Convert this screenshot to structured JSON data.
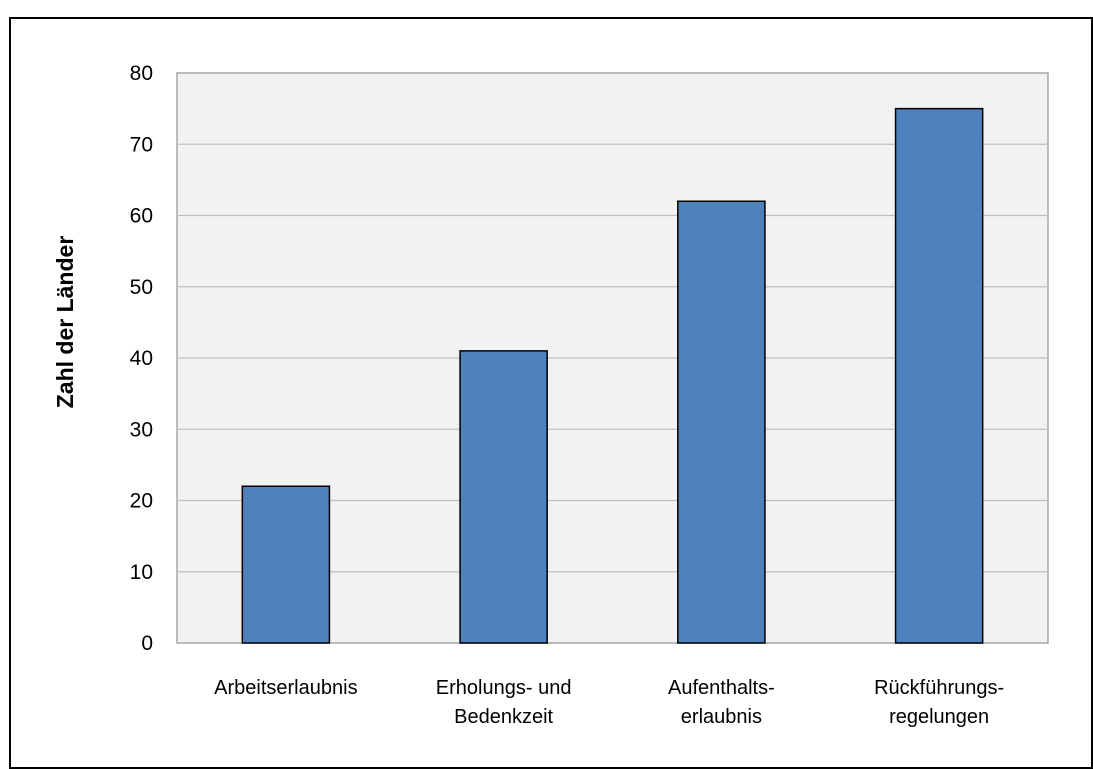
{
  "chart_data": {
    "type": "bar",
    "title": "",
    "xlabel": "",
    "ylabel": "Zahl der Länder",
    "ylim": [
      0,
      80
    ],
    "yticks": [
      0,
      10,
      20,
      30,
      40,
      50,
      60,
      70,
      80
    ],
    "grid": true,
    "legend": "none",
    "categories": [
      [
        "Arbeitserlaubnis"
      ],
      [
        "Erholungs- und",
        "Bedenkzeit"
      ],
      [
        "Aufenthalts-",
        "erlaubnis"
      ],
      [
        "Rückführungs-",
        "regelungen"
      ]
    ],
    "values": [
      22,
      41,
      62,
      75
    ],
    "colors": {
      "bar_fill": "#4F81BD",
      "bar_stroke": "#000000",
      "plot_background": "#F2F2F2",
      "gridline": "#BFBFBF",
      "plot_border": "#A6A6A6"
    }
  }
}
